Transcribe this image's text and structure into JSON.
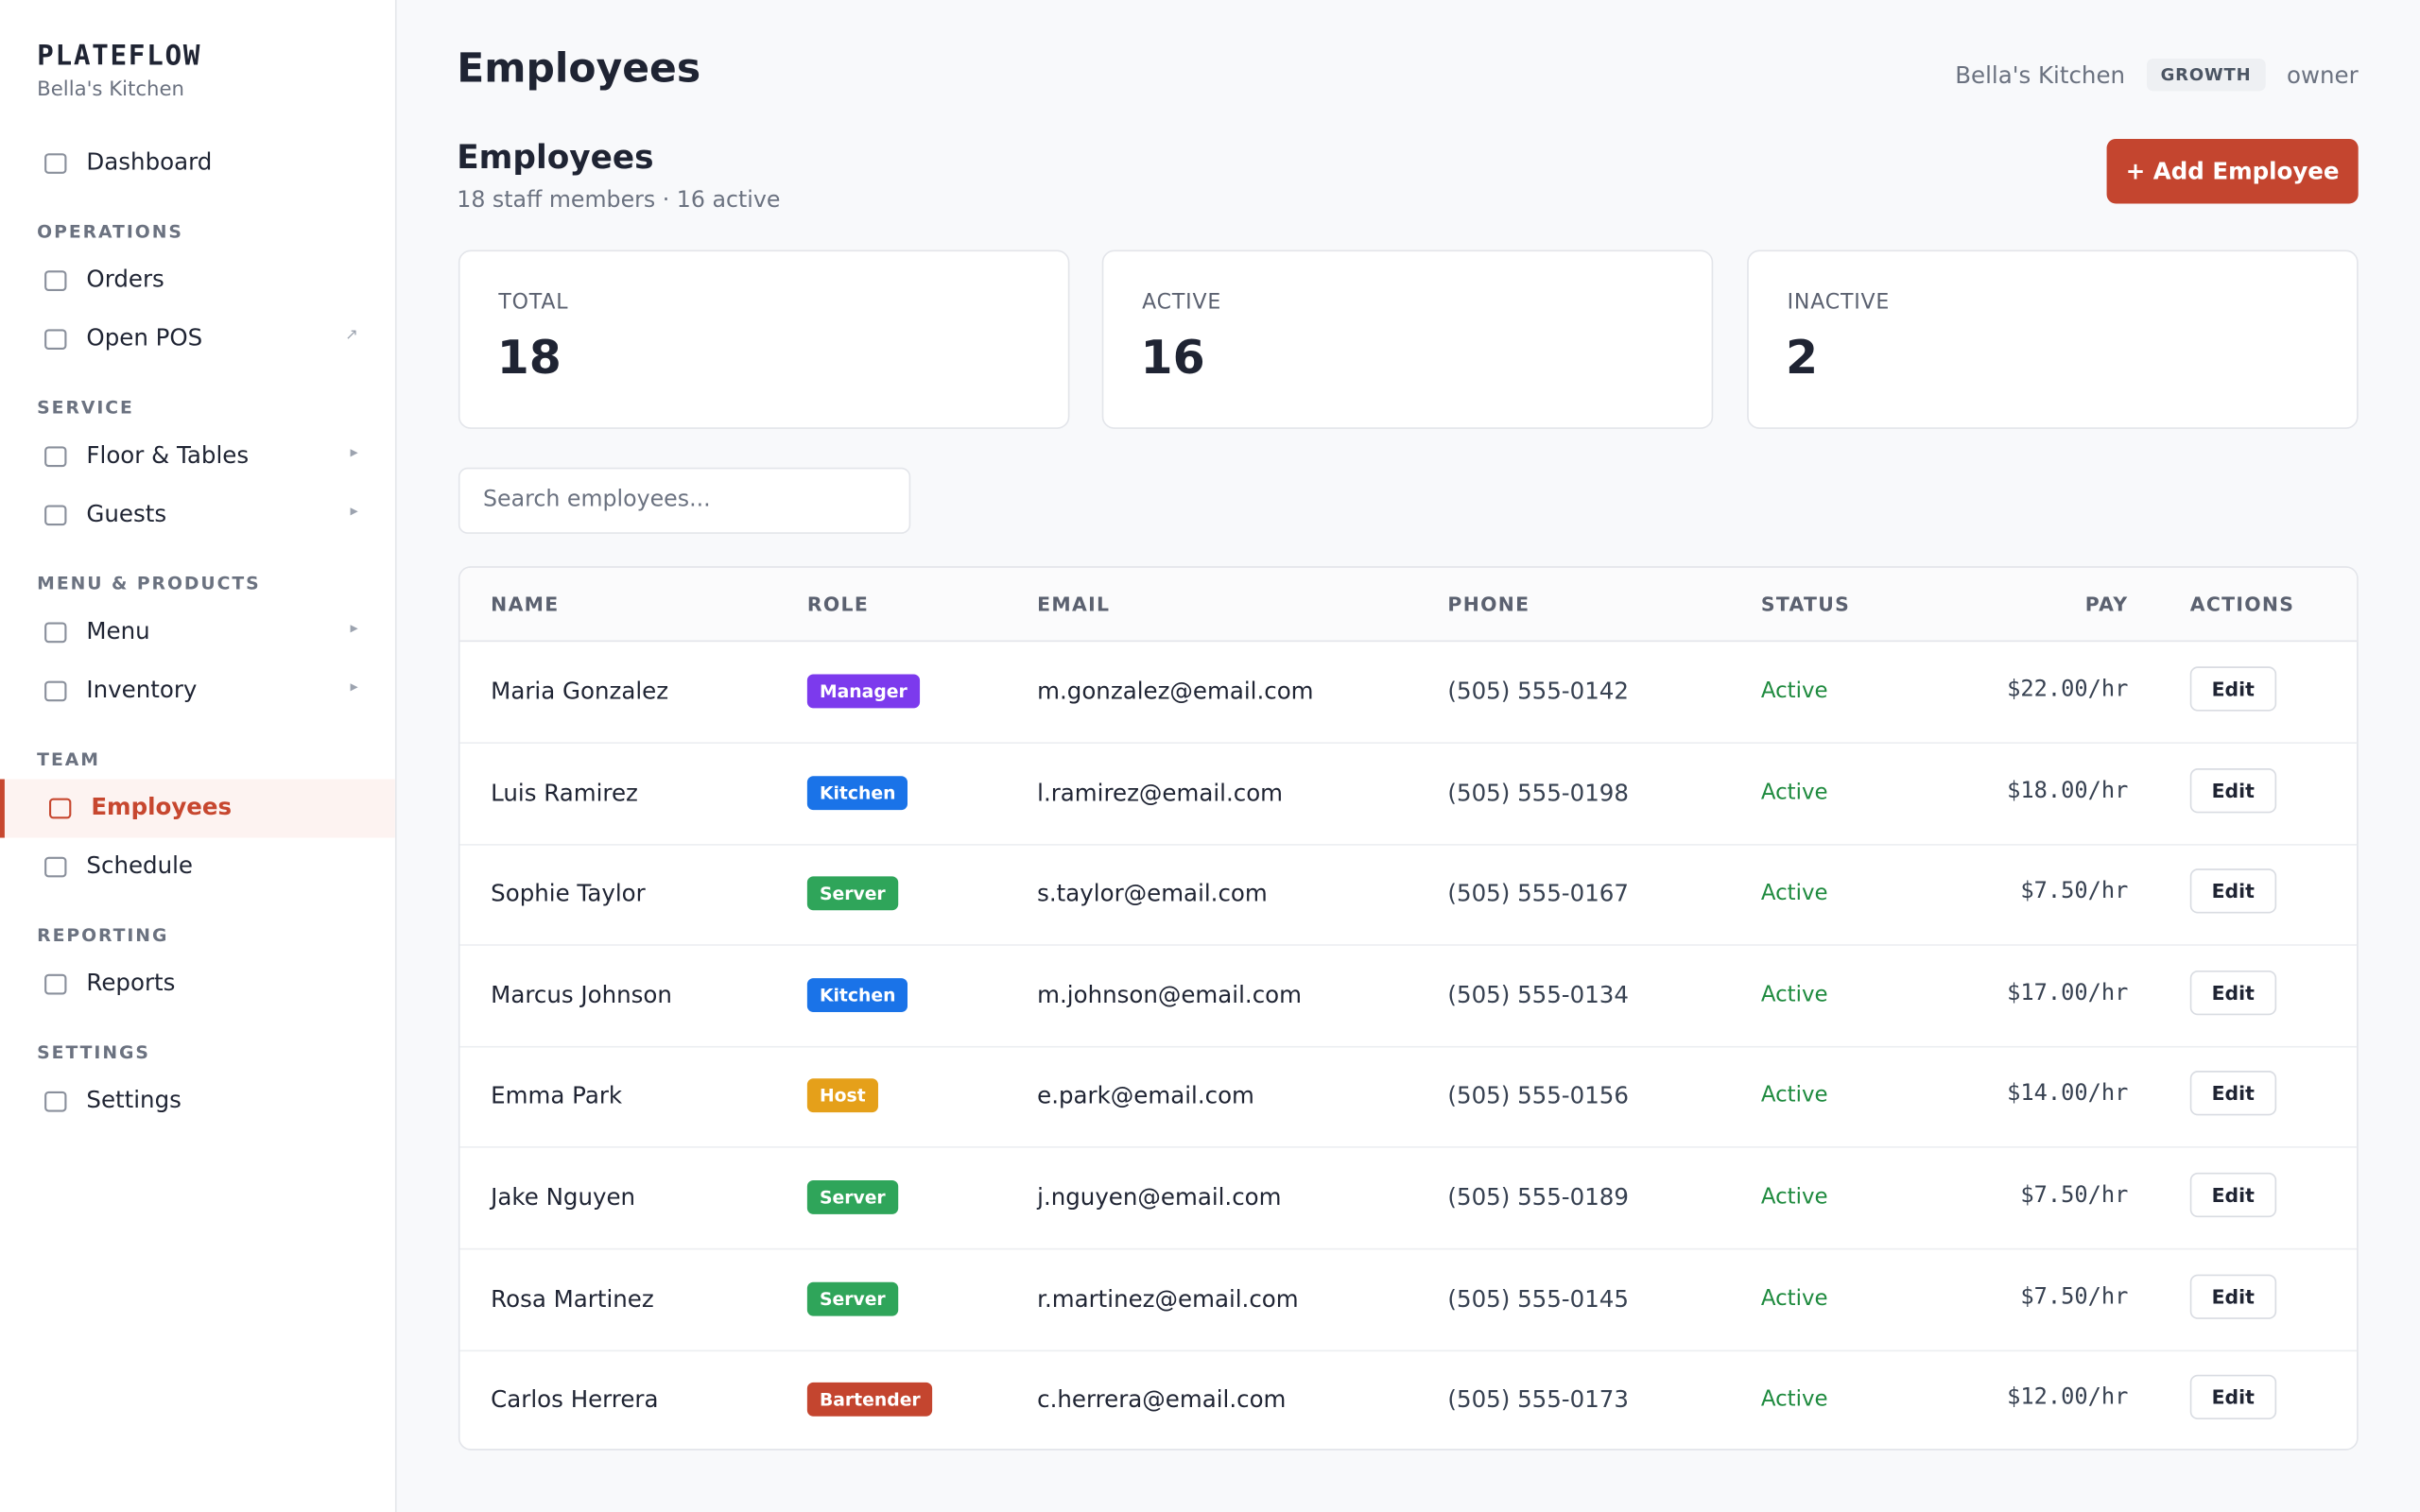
{
  "sidebar": {
    "brand": "PLATEFLOW",
    "subtitle": "Bella's Kitchen",
    "top": {
      "label": "Dashboard"
    },
    "sections": [
      {
        "title": "OPERATIONS",
        "items": [
          {
            "label": "Orders"
          },
          {
            "label": "Open POS",
            "marker": "↗"
          }
        ]
      },
      {
        "title": "SERVICE",
        "items": [
          {
            "label": "Floor & Tables",
            "marker": "▸"
          },
          {
            "label": "Guests",
            "marker": "▸"
          }
        ]
      },
      {
        "title": "MENU & PRODUCTS",
        "items": [
          {
            "label": "Menu",
            "marker": "▸"
          },
          {
            "label": "Inventory",
            "marker": "▸"
          }
        ]
      },
      {
        "title": "TEAM",
        "items": [
          {
            "label": "Employees",
            "active": true
          },
          {
            "label": "Schedule"
          }
        ]
      },
      {
        "title": "REPORTING",
        "items": [
          {
            "label": "Reports"
          }
        ]
      },
      {
        "title": "SETTINGS",
        "items": [
          {
            "label": "Settings"
          }
        ]
      }
    ]
  },
  "header": {
    "title": "Employees",
    "restaurant": "Bella's Kitchen",
    "plan": "GROWTH",
    "role": "owner"
  },
  "page": {
    "title": "Employees",
    "subtitle": "18 staff members · 16 active",
    "button": "+ Add Employee",
    "stats": [
      {
        "label": "TOTAL",
        "value": 18
      },
      {
        "label": "ACTIVE",
        "value": 16
      },
      {
        "label": "INACTIVE",
        "value": 2
      }
    ],
    "search_placeholder": "Search employees..."
  },
  "table": {
    "columns": [
      "NAME",
      "ROLE",
      "EMAIL",
      "PHONE",
      "STATUS",
      "PAY",
      "ACTIONS"
    ],
    "rows": [
      {
        "name": "Maria Gonzalez",
        "role": {
          "label": "Manager",
          "color": "#7c3aed"
        },
        "email": "m.gonzalez@email.com",
        "phone": "(505) 555-0142",
        "status": "Active",
        "pay": "$22.00/hr",
        "action": "Edit"
      },
      {
        "name": "Luis Ramirez",
        "role": {
          "label": "Kitchen",
          "color": "#1a73e8"
        },
        "email": "l.ramirez@email.com",
        "phone": "(505) 555-0198",
        "status": "Active",
        "pay": "$18.00/hr",
        "action": "Edit"
      },
      {
        "name": "Sophie Taylor",
        "role": {
          "label": "Server",
          "color": "#2fa55a"
        },
        "email": "s.taylor@email.com",
        "phone": "(505) 555-0167",
        "status": "Active",
        "pay": "$7.50/hr",
        "action": "Edit"
      },
      {
        "name": "Marcus Johnson",
        "role": {
          "label": "Kitchen",
          "color": "#1a73e8"
        },
        "email": "m.johnson@email.com",
        "phone": "(505) 555-0134",
        "status": "Active",
        "pay": "$17.00/hr",
        "action": "Edit"
      },
      {
        "name": "Emma Park",
        "role": {
          "label": "Host",
          "color": "#e5a01a"
        },
        "email": "e.park@email.com",
        "phone": "(505) 555-0156",
        "status": "Active",
        "pay": "$14.00/hr",
        "action": "Edit"
      },
      {
        "name": "Jake Nguyen",
        "role": {
          "label": "Server",
          "color": "#2fa55a"
        },
        "email": "j.nguyen@email.com",
        "phone": "(505) 555-0189",
        "status": "Active",
        "pay": "$7.50/hr",
        "action": "Edit"
      },
      {
        "name": "Rosa Martinez",
        "role": {
          "label": "Server",
          "color": "#2fa55a"
        },
        "email": "r.martinez@email.com",
        "phone": "(505) 555-0145",
        "status": "Active",
        "pay": "$7.50/hr",
        "action": "Edit"
      },
      {
        "name": "Carlos Herrera",
        "role": {
          "label": "Bartender",
          "color": "#c4452f"
        },
        "email": "c.herrera@email.com",
        "phone": "(505) 555-0173",
        "status": "Active",
        "pay": "$12.00/hr",
        "action": "Edit"
      }
    ]
  }
}
